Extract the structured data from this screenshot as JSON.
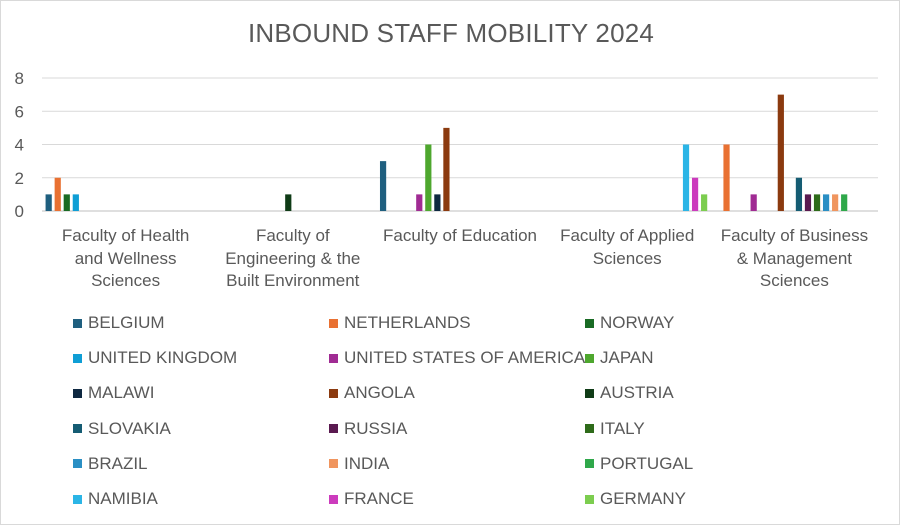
{
  "chart_data": {
    "type": "bar",
    "title": "INBOUND STAFF MOBILITY 2024",
    "xlabel": "",
    "ylabel": "",
    "ylim": [
      0,
      8
    ],
    "yticks": [
      0,
      2,
      4,
      6,
      8
    ],
    "grid": true,
    "legend_position": "bottom",
    "categories": [
      "Faculty of Health and Wellness Sciences",
      "Faculty of Engineering & the Built Environment",
      "Faculty of Education",
      "Faculty of Applied Sciences",
      "Faculty of Business & Management Sciences"
    ],
    "series": [
      {
        "name": "BELGIUM",
        "color": "#1f5f7f",
        "values": [
          1,
          null,
          3,
          null,
          null
        ]
      },
      {
        "name": "NETHERLANDS",
        "color": "#e97132",
        "values": [
          2,
          null,
          null,
          null,
          4
        ]
      },
      {
        "name": "NORWAY",
        "color": "#196b24",
        "values": [
          1,
          null,
          null,
          null,
          null
        ]
      },
      {
        "name": "UNITED KINGDOM",
        "color": "#0f9ed5",
        "values": [
          1,
          null,
          null,
          null,
          null
        ]
      },
      {
        "name": "UNITED STATES OF AMERICA",
        "color": "#a02b93",
        "values": [
          null,
          null,
          1,
          null,
          1
        ]
      },
      {
        "name": "JAPAN",
        "color": "#4ea72e",
        "values": [
          null,
          null,
          4,
          null,
          null
        ]
      },
      {
        "name": "MALAWI",
        "color": "#0e2841",
        "values": [
          null,
          null,
          1,
          null,
          null
        ]
      },
      {
        "name": "ANGOLA",
        "color": "#8b3a0f",
        "values": [
          null,
          null,
          5,
          null,
          7
        ]
      },
      {
        "name": "AUSTRIA",
        "color": "#0f3b16",
        "values": [
          null,
          1,
          null,
          null,
          null
        ]
      },
      {
        "name": "SLOVAKIA",
        "color": "#155c73",
        "values": [
          null,
          null,
          null,
          null,
          2
        ]
      },
      {
        "name": "RUSSIA",
        "color": "#5a1a50",
        "values": [
          null,
          null,
          null,
          null,
          1
        ]
      },
      {
        "name": "ITALY",
        "color": "#2e6b1a",
        "values": [
          null,
          null,
          null,
          null,
          1
        ]
      },
      {
        "name": "BRAZIL",
        "color": "#2a8fc4",
        "values": [
          null,
          null,
          null,
          null,
          1
        ]
      },
      {
        "name": "INDIA",
        "color": "#f0955e",
        "values": [
          null,
          null,
          null,
          null,
          1
        ]
      },
      {
        "name": "PORTUGAL",
        "color": "#2fa84a",
        "values": [
          null,
          null,
          null,
          null,
          1
        ]
      },
      {
        "name": "NAMIBIA",
        "color": "#2bb5e6",
        "values": [
          null,
          null,
          null,
          4,
          null
        ]
      },
      {
        "name": "FRANCE",
        "color": "#cc3bbd",
        "values": [
          null,
          null,
          null,
          2,
          null
        ]
      },
      {
        "name": "GERMANY",
        "color": "#7ccd4f",
        "values": [
          null,
          null,
          null,
          1,
          null
        ]
      }
    ]
  },
  "category_labels": [
    "Faculty of Health\nand Wellness\nSciences",
    "Faculty of\nEngineering & the\nBuilt Environment",
    "Faculty of Education",
    "Faculty of Applied\nSciences",
    "Faculty of Business\n& Management\nSciences"
  ]
}
